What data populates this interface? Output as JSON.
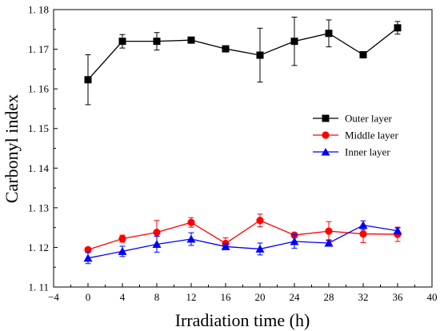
{
  "chart_data": {
    "type": "line",
    "xlabel": "Irradiation time (h)",
    "ylabel": "Carbonyl index",
    "xlim": [
      -4,
      40
    ],
    "ylim": [
      1.11,
      1.18
    ],
    "x_tick_values": [
      -4,
      0,
      4,
      8,
      12,
      16,
      20,
      24,
      28,
      32,
      36,
      40
    ],
    "x_tick_labels": [
      "−4",
      "0",
      "4",
      "8",
      "12",
      "16",
      "20",
      "24",
      "28",
      "32",
      "36",
      "40"
    ],
    "y_tick_values": [
      1.11,
      1.12,
      1.13,
      1.14,
      1.15,
      1.16,
      1.17,
      1.18
    ],
    "y_tick_labels": [
      "1. 11",
      "1. 12",
      "1. 13",
      "1. 14",
      "1. 15",
      "1. 16",
      "1. 17",
      "1. 18"
    ],
    "x": [
      0,
      4,
      8,
      12,
      16,
      20,
      24,
      28,
      32,
      36
    ],
    "legend_position": "right-middle",
    "grid": false,
    "series": [
      {
        "name": "Outer layer",
        "color": "#000000",
        "marker": "square",
        "values": [
          1.1623,
          1.172,
          1.172,
          1.1723,
          1.1701,
          1.1685,
          1.172,
          1.174,
          1.1686,
          1.1754
        ],
        "errors": [
          0.0063,
          0.0017,
          0.0022,
          0.0004,
          0.0004,
          0.0068,
          0.0061,
          0.0034,
          0.0008,
          0.0016
        ]
      },
      {
        "name": "Middle layer",
        "color": "#ff0000",
        "marker": "circle",
        "values": [
          1.1194,
          1.1222,
          1.1238,
          1.1263,
          1.121,
          1.1268,
          1.1231,
          1.1241,
          1.1234,
          1.1233
        ],
        "errors": [
          0.0005,
          0.0009,
          0.003,
          0.0012,
          0.0014,
          0.0016,
          0.0005,
          0.0024,
          0.0022,
          0.0018
        ]
      },
      {
        "name": "Inner layer",
        "color": "#0000ff",
        "marker": "triangle",
        "values": [
          1.1173,
          1.119,
          1.1208,
          1.1221,
          1.1202,
          1.1196,
          1.1215,
          1.1211,
          1.1256,
          1.1242
        ],
        "errors": [
          0.0014,
          0.0013,
          0.002,
          0.0016,
          0.0007,
          0.0015,
          0.0017,
          0.0008,
          0.0011,
          0.0007
        ]
      }
    ]
  }
}
